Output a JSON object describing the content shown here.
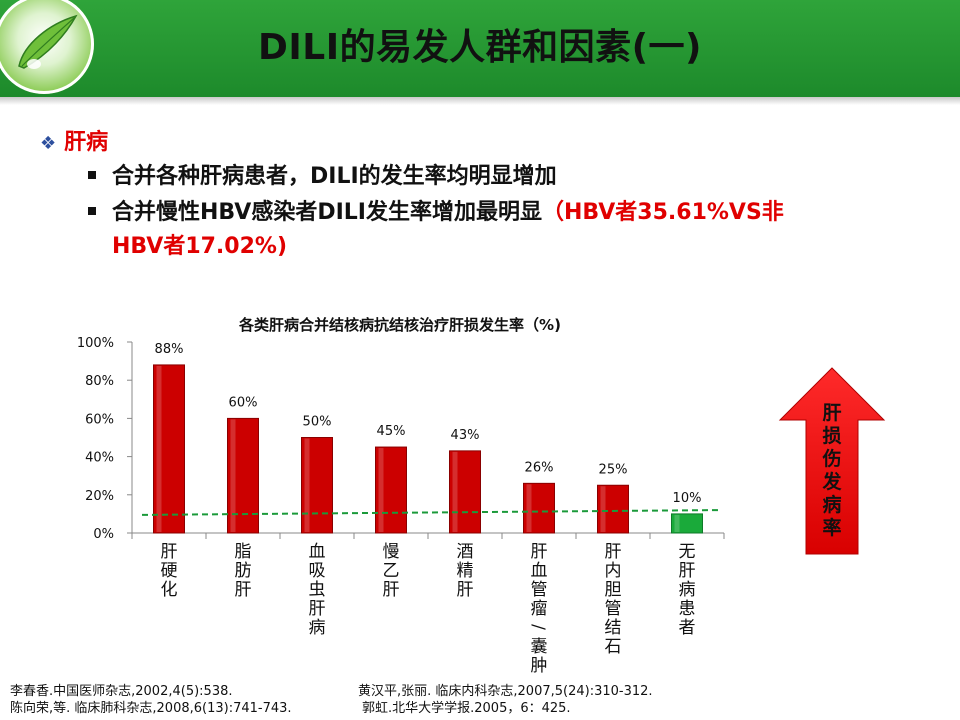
{
  "slide": {
    "title": "DILI的易发人群和因素(一)"
  },
  "bullets": {
    "heading": "肝病",
    "item1": "合并各种肝病患者，DILI的发生率均明显增加",
    "item2_main": "合并慢性HBV感染者DILI发生率增加最明显",
    "item2_red_line1": "（HBV者35.61%VS非",
    "item2_red_line2": "HBV者17.02%)"
  },
  "chart_data": {
    "type": "bar",
    "title": "各类肝病合并结核病抗结核治疗肝损发生率（%)",
    "categories": [
      "肝硬化",
      "脂肪肝",
      "血吸虫肝病",
      "慢乙肝",
      "酒精肝",
      "肝血管瘤/囊肿",
      "肝内胆管结石",
      "无肝病患者"
    ],
    "values": [
      88,
      60,
      50,
      45,
      43,
      26,
      25,
      10
    ],
    "data_labels": [
      "88%",
      "60%",
      "50%",
      "45%",
      "43%",
      "26%",
      "25%",
      "10%"
    ],
    "y_ticks": [
      "0%",
      "20%",
      "40%",
      "60%",
      "80%",
      "100%"
    ],
    "ylim": [
      0,
      100
    ],
    "trendline": "dashed-green",
    "colors": {
      "bar": "#cc0000",
      "last_bar": "#1aaa3a",
      "trend": "#1a9a3a"
    }
  },
  "side_arrow": {
    "label": "肝损伤发病率",
    "color": "#e60000"
  },
  "references": {
    "r1": "李春香.中国医师杂志,2002,4(5):538.",
    "r2": "黄汉平,张丽. 临床内科杂志,2007,5(24):310-312.",
    "r3": "陈向荣,等. 临床肺科杂志,2008,6(13):741-743.",
    "r4": "郭虹.北华大学学报.2005，6：425."
  },
  "icons": {
    "logo": "leaf-water-drop-logo"
  }
}
